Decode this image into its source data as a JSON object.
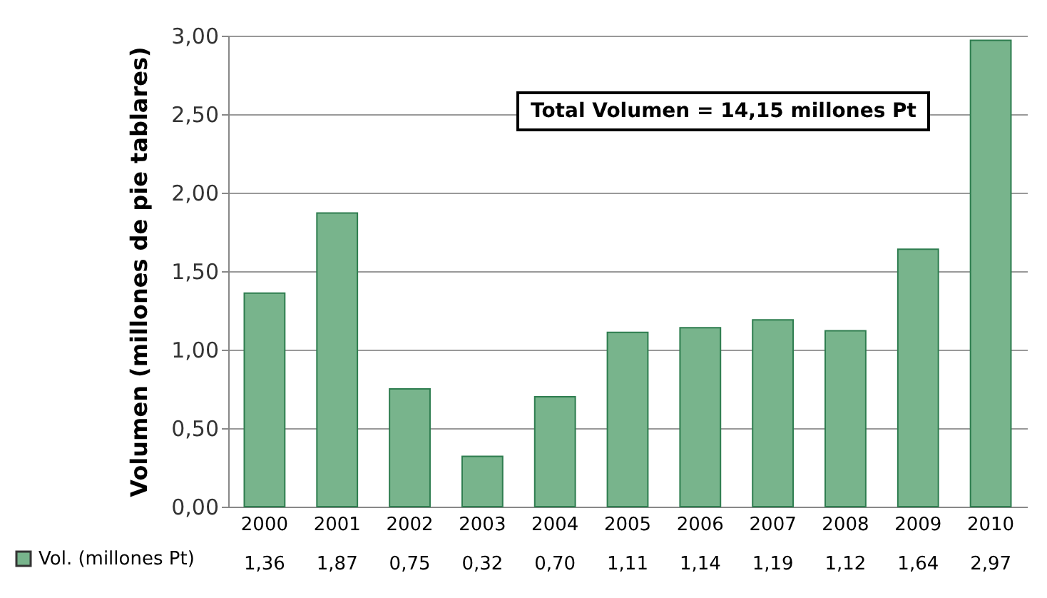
{
  "chart_data": {
    "type": "bar",
    "ylabel": "Volumen  (millones de pie tablares)",
    "categories": [
      "2000",
      "2001",
      "2002",
      "2003",
      "2004",
      "2005",
      "2006",
      "2007",
      "2008",
      "2009",
      "2010"
    ],
    "series": [
      {
        "name": "Vol. (millones Pt)",
        "color": "#78b48c",
        "values": [
          1.36,
          1.87,
          0.75,
          0.32,
          0.7,
          1.11,
          1.14,
          1.19,
          1.12,
          1.64,
          2.97
        ],
        "value_labels": [
          "1,36",
          "1,87",
          "0,75",
          "0,32",
          "0,70",
          "1,11",
          "1,14",
          "1,19",
          "1,12",
          "1,64",
          "2,97"
        ]
      }
    ],
    "ylim": [
      0,
      3
    ],
    "yticks": [
      {
        "value": 0,
        "label": "0,00"
      },
      {
        "value": 0.5,
        "label": "0,50"
      },
      {
        "value": 1,
        "label": "1,00"
      },
      {
        "value": 1.5,
        "label": "1,50"
      },
      {
        "value": 2,
        "label": "2,00"
      },
      {
        "value": 2.5,
        "label": "2,50"
      },
      {
        "value": 3,
        "label": "3,00"
      }
    ],
    "grid": "y",
    "legend": "bottom left",
    "annotations": [
      "Total Volumen = 14,15 millones Pt"
    ]
  }
}
